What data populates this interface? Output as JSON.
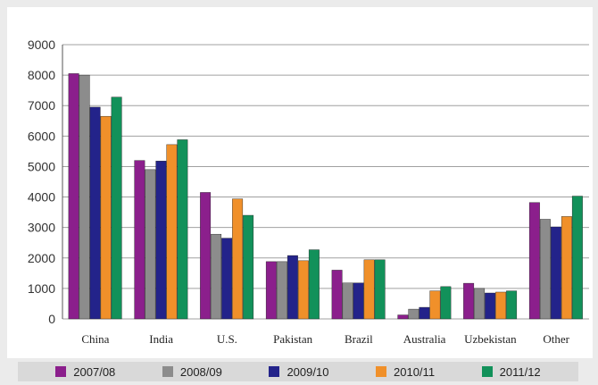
{
  "chart_data": {
    "type": "bar",
    "categories": [
      "China",
      "India",
      "U.S.",
      "Pakistan",
      "Brazil",
      "Australia",
      "Uzbekistan",
      "Other"
    ],
    "series": [
      {
        "name": "2007/08",
        "color": "#8b1f8c",
        "values": [
          8050,
          5200,
          4150,
          1880,
          1600,
          130,
          1170,
          3820
        ]
      },
      {
        "name": "2008/09",
        "color": "#8c8c8c",
        "values": [
          8000,
          4900,
          2780,
          1880,
          1180,
          320,
          1000,
          3270
        ]
      },
      {
        "name": "2009/10",
        "color": "#23238a",
        "values": [
          6950,
          5180,
          2650,
          2080,
          1180,
          380,
          850,
          3020
        ]
      },
      {
        "name": "2010/11",
        "color": "#f0902a",
        "values": [
          6650,
          5720,
          3940,
          1910,
          1940,
          920,
          880,
          3360
        ]
      },
      {
        "name": "2011/12",
        "color": "#12915a",
        "values": [
          7280,
          5880,
          3400,
          2270,
          1940,
          1060,
          920,
          4030
        ]
      }
    ],
    "yticks": [
      "0",
      "1000",
      "2000",
      "3000",
      "4000",
      "5000",
      "6000",
      "7000",
      "8000",
      "9000"
    ],
    "ylim": [
      0,
      9000
    ],
    "grid": true,
    "legend_position": "bottom",
    "title": "",
    "xlabel": "",
    "ylabel": ""
  }
}
